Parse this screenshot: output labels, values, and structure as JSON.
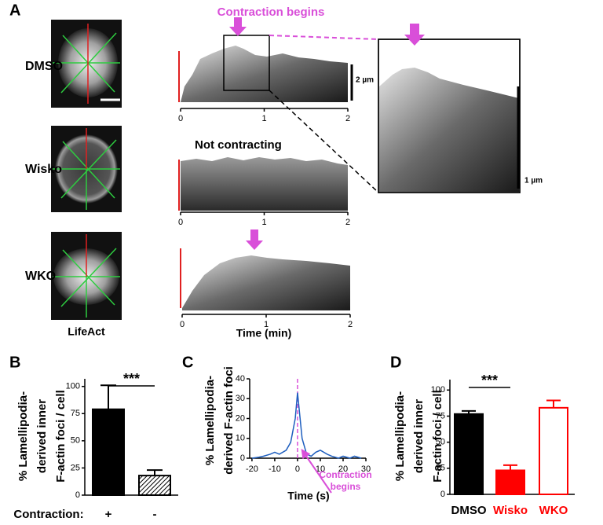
{
  "panel_a": {
    "letter": "A",
    "annotation": "Contraction begins",
    "rows": [
      {
        "label": "DMSO"
      },
      {
        "label": "Wisko",
        "note": "Not contracting"
      },
      {
        "label": "WKO"
      }
    ],
    "image_label": "LifeAct",
    "kymograph_axis": {
      "xlim": [
        0,
        2
      ],
      "xticks": [
        0,
        1,
        2
      ],
      "xlabel": "Time (min)"
    },
    "scale_bars": [
      "2 µm",
      "1 µm"
    ]
  },
  "chart_data": [
    {
      "type": "bar",
      "letter": "B",
      "ylabel": [
        "% Lamellipodia-",
        "derived inner",
        "F-actin foci / cell"
      ],
      "xlabel": "Contraction:",
      "categories": [
        "+",
        "-"
      ],
      "values": [
        79,
        18
      ],
      "errors": [
        22,
        5
      ],
      "colors": [
        "#000000",
        "#000000"
      ],
      "filled": [
        true,
        true
      ],
      "hatch": [
        false,
        true
      ],
      "label_colors": [
        "#000000",
        "#000000"
      ],
      "ylim": [
        0,
        107
      ],
      "yticks": [
        0,
        25,
        50,
        75,
        100
      ],
      "significance": "***"
    },
    {
      "type": "line",
      "letter": "C",
      "ylabel": [
        "% Lamellipodia-",
        "derived F-actin foci"
      ],
      "xlabel": "Time (s)",
      "x": [
        -20,
        -17,
        -15,
        -12,
        -10,
        -8,
        -5,
        -3,
        -1,
        0,
        2,
        4,
        6,
        8,
        10,
        13,
        15,
        18,
        20,
        23,
        25,
        28
      ],
      "series": [
        {
          "color": "#1f5fbf",
          "values": [
            0,
            0.5,
            1,
            2,
            3,
            2,
            4,
            8,
            20,
            33,
            10,
            2,
            1,
            3,
            4,
            2,
            1,
            0,
            1,
            0,
            1,
            0
          ]
        }
      ],
      "event_x": 0,
      "event_color": "#d94fd9",
      "annotation": [
        "Contraction",
        "begins"
      ],
      "xlim": [
        -21,
        30
      ],
      "xticks": [
        -20,
        -10,
        0,
        10,
        20,
        30
      ],
      "ylim": [
        0,
        40
      ],
      "yticks": [
        0,
        10,
        20,
        30,
        40
      ]
    },
    {
      "type": "bar",
      "letter": "D",
      "ylabel": [
        "% Lamellipodia-",
        "derived inner",
        "F-actin foci / cell"
      ],
      "categories": [
        "DMSO",
        "Wisko",
        "WKO"
      ],
      "values": [
        77,
        23,
        83
      ],
      "errors": [
        3,
        5,
        7
      ],
      "colors": [
        "#000000",
        "#ff0000",
        "#ff0000"
      ],
      "filled": [
        true,
        true,
        false
      ],
      "hatch": [
        false,
        false,
        false
      ],
      "label_colors": [
        "#000000",
        "#ff0000",
        "#ff0000"
      ],
      "ylim": [
        0,
        110
      ],
      "yticks": [
        0,
        25,
        50,
        75,
        100
      ],
      "significance": "***"
    }
  ]
}
